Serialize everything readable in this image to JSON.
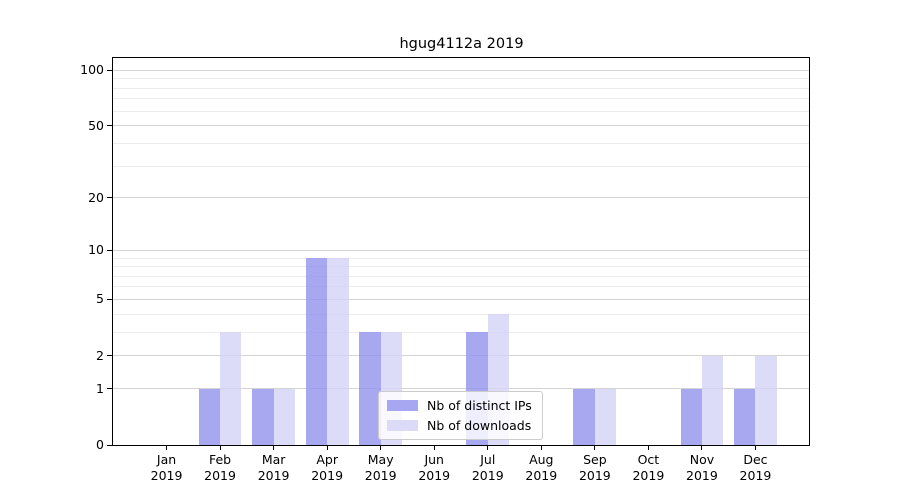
{
  "chart_data": {
    "type": "bar",
    "title": "hgug4112a 2019",
    "x_year": "2019",
    "categories": [
      "Jan",
      "Feb",
      "Mar",
      "Apr",
      "May",
      "Jun",
      "Jul",
      "Aug",
      "Sep",
      "Oct",
      "Nov",
      "Dec"
    ],
    "series": [
      {
        "name": "Nb of distinct IPs",
        "color": "#a6a6f1",
        "fill": "rgba(146,146,236,0.8)",
        "values": [
          0,
          1,
          1,
          9,
          3,
          0,
          3,
          0,
          1,
          0,
          1,
          1
        ]
      },
      {
        "name": "Nb of downloads",
        "color": "#dbdbf7",
        "fill": "rgba(211,211,246,0.8)",
        "values": [
          0,
          3,
          1,
          9,
          3,
          0,
          4,
          0,
          1,
          0,
          2,
          2
        ]
      }
    ],
    "y_scale": "log1p",
    "y_ticks": [
      0,
      1,
      2,
      5,
      10,
      20,
      50,
      100
    ],
    "y_minor_ticks": [
      3,
      4,
      6,
      7,
      8,
      9,
      30,
      40,
      60,
      70,
      80,
      90
    ],
    "ylim": [
      0,
      116
    ],
    "grid": true,
    "legend_position": "lower center",
    "colors": {
      "grid_major": "#d4d4d4",
      "grid_minor": "#ececec",
      "spine": "#000000",
      "background": "#ffffff"
    }
  }
}
